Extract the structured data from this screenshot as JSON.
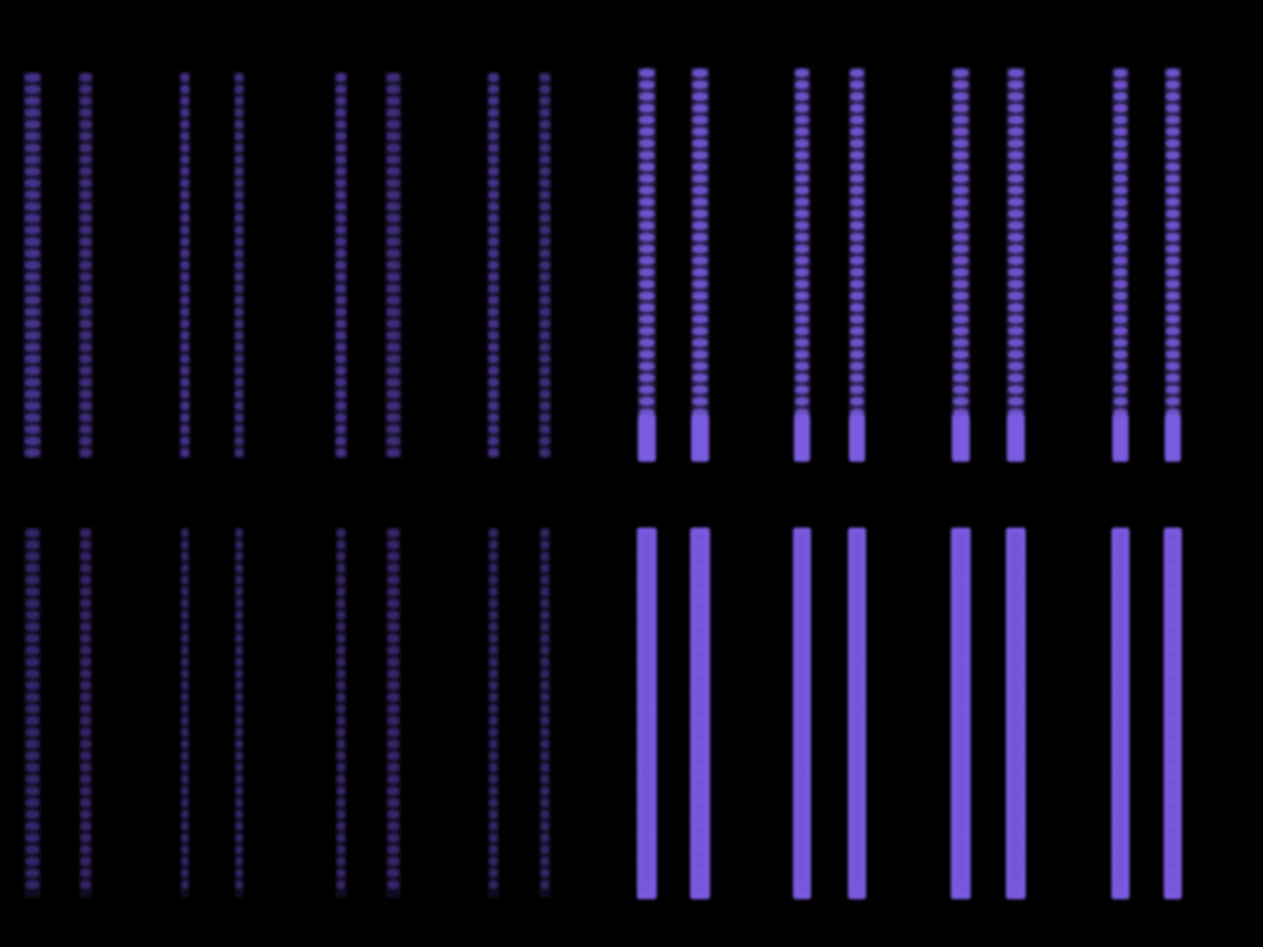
{
  "image": {
    "subject": "fluorescent-strips",
    "background_color": "#000000",
    "stripe_color_bright": "#7a5ce0",
    "stripe_color_dim": "#5a3fb0",
    "rows": 2,
    "columns": 16
  }
}
